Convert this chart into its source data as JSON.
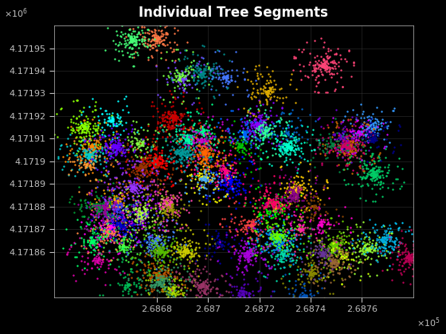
{
  "title": "Individual Tree Segments",
  "background_color": "#000000",
  "text_color": "#c0c0c0",
  "grid_color": "#404040",
  "xlim": [
    268640,
    268780
  ],
  "ylim": [
    4171840,
    4171960
  ],
  "xticks": [
    268680,
    268700,
    268720,
    268740,
    268760
  ],
  "xtick_labels": [
    "2.6868",
    "2.687",
    "2.6872",
    "2.6874",
    "2.6876"
  ],
  "yticks": [
    4171860,
    4171870,
    4171880,
    4171890,
    4171900,
    4171910,
    4171920,
    4171930,
    4171940,
    4171950
  ],
  "ytick_labels": [
    "4.17186",
    "4.17187",
    "4.17188",
    "4.17189",
    "4.1719",
    "4.17191",
    "4.17192",
    "4.17193",
    "4.17194",
    "4.17195"
  ],
  "seed": 42,
  "point_size": 3,
  "cluster_spread": 8,
  "specific_colors": [
    "#ff0000",
    "#00ff00",
    "#0000ff",
    "#ffff00",
    "#ff00ff",
    "#00ffff",
    "#ff8800",
    "#8800ff",
    "#00ff88",
    "#ff0088",
    "#88ff00",
    "#0088ff",
    "#ff4444",
    "#44ff44",
    "#4444ff",
    "#ffaa00",
    "#aa00ff",
    "#00ffaa",
    "#ff44aa",
    "#aaff44",
    "#44aaff",
    "#ff8844",
    "#88ff44",
    "#4488ff",
    "#cc0000",
    "#00cc00",
    "#0000cc",
    "#cccc00",
    "#cc00cc",
    "#00cccc",
    "#ff6600",
    "#6600ff",
    "#00ff66",
    "#ff0066",
    "#66ff00",
    "#0066ff",
    "#993300",
    "#009933",
    "#000099",
    "#999900",
    "#990099",
    "#009999",
    "#ff9933",
    "#33ff99",
    "#9933ff",
    "#ff3399",
    "#99ff33",
    "#3399ff",
    "#cc6600",
    "#00cc66",
    "#6600cc",
    "#cc0066",
    "#66cc00",
    "#0066cc",
    "#ffcc00",
    "#00ffcc",
    "#cc00ff",
    "#ff00cc",
    "#ccff00",
    "#00ccff",
    "#884400",
    "#008844",
    "#000088",
    "#888800",
    "#880088",
    "#008888",
    "#ff7744",
    "#44ff77",
    "#7744ff",
    "#ff4477",
    "#77ff44",
    "#4477ff",
    "#ddaa00",
    "#00ddaa",
    "#aa00dd",
    "#dd00aa",
    "#aadd00",
    "#00aadd",
    "#bb5500",
    "#00bb55",
    "#5500bb",
    "#bb0055",
    "#55bb00",
    "#0055bb",
    "#996633",
    "#339966",
    "#663399",
    "#993366",
    "#669933",
    "#336699",
    "#c8a000",
    "#00c8a0",
    "#a000c8",
    "#808080",
    "#d3d3d3",
    "#556b2f"
  ]
}
